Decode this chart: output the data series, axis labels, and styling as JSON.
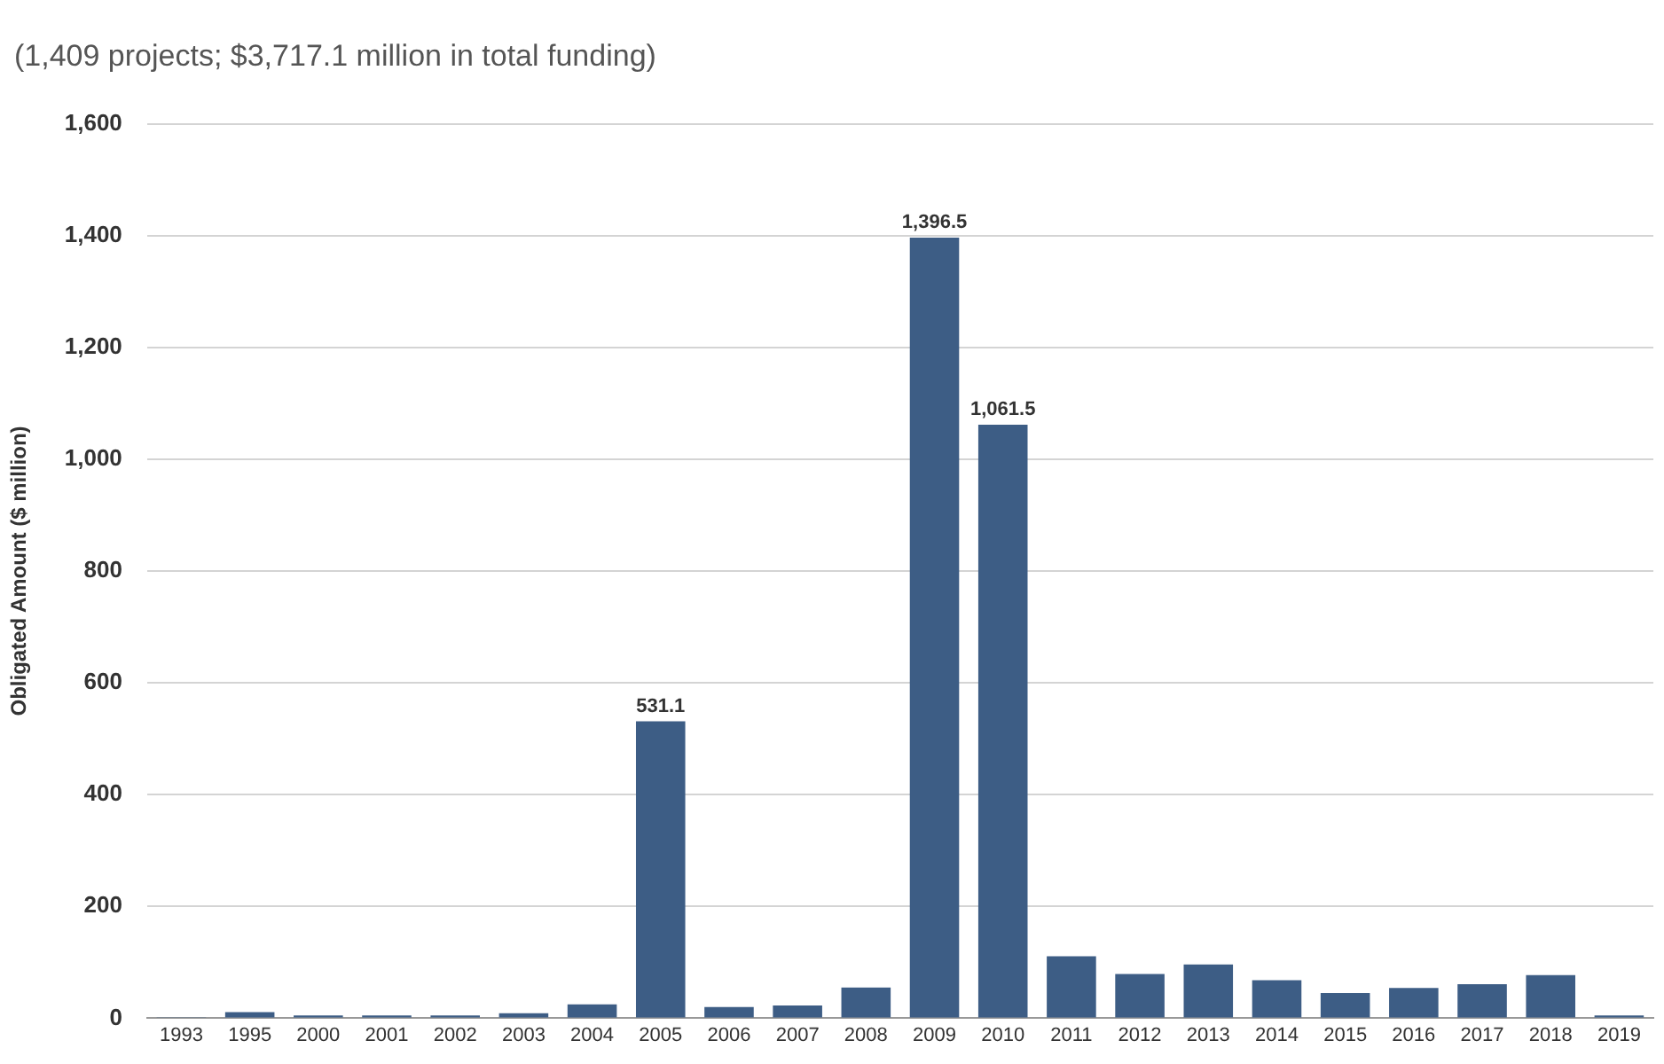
{
  "chart_data": {
    "type": "bar",
    "subtitle": "(1,409 projects; $3,717.1 million in total funding)",
    "ylabel": "Obligated Amount ($ million)",
    "categories": [
      "1993",
      "1995",
      "2000",
      "2001",
      "2002",
      "2003",
      "2004",
      "2005",
      "2006",
      "2007",
      "2008",
      "2009",
      "2010",
      "2011",
      "2012",
      "2013",
      "2014",
      "2015",
      "2016",
      "2017",
      "2018",
      "2019"
    ],
    "values": [
      1,
      11,
      5,
      5,
      5,
      9,
      25,
      531.1,
      20,
      23,
      55,
      1396.5,
      1061.5,
      111,
      79,
      96,
      68,
      45,
      54,
      61,
      77,
      5
    ],
    "value_labels": [
      null,
      null,
      null,
      null,
      null,
      null,
      null,
      "531.1",
      null,
      null,
      null,
      "1,396.5",
      "1,061.5",
      null,
      null,
      null,
      null,
      null,
      null,
      null,
      null,
      null
    ],
    "color": "#3d5d85",
    "ylim": [
      0,
      1600
    ],
    "yticks": [
      0,
      200,
      400,
      600,
      800,
      {
        "value": 1000,
        "label": "1,000"
      },
      {
        "value": 1200,
        "label": "1,200"
      },
      {
        "value": 1400,
        "label": "1,400"
      },
      {
        "value": 1600,
        "label": "1,600"
      }
    ],
    "grid": "y",
    "legend": false
  }
}
